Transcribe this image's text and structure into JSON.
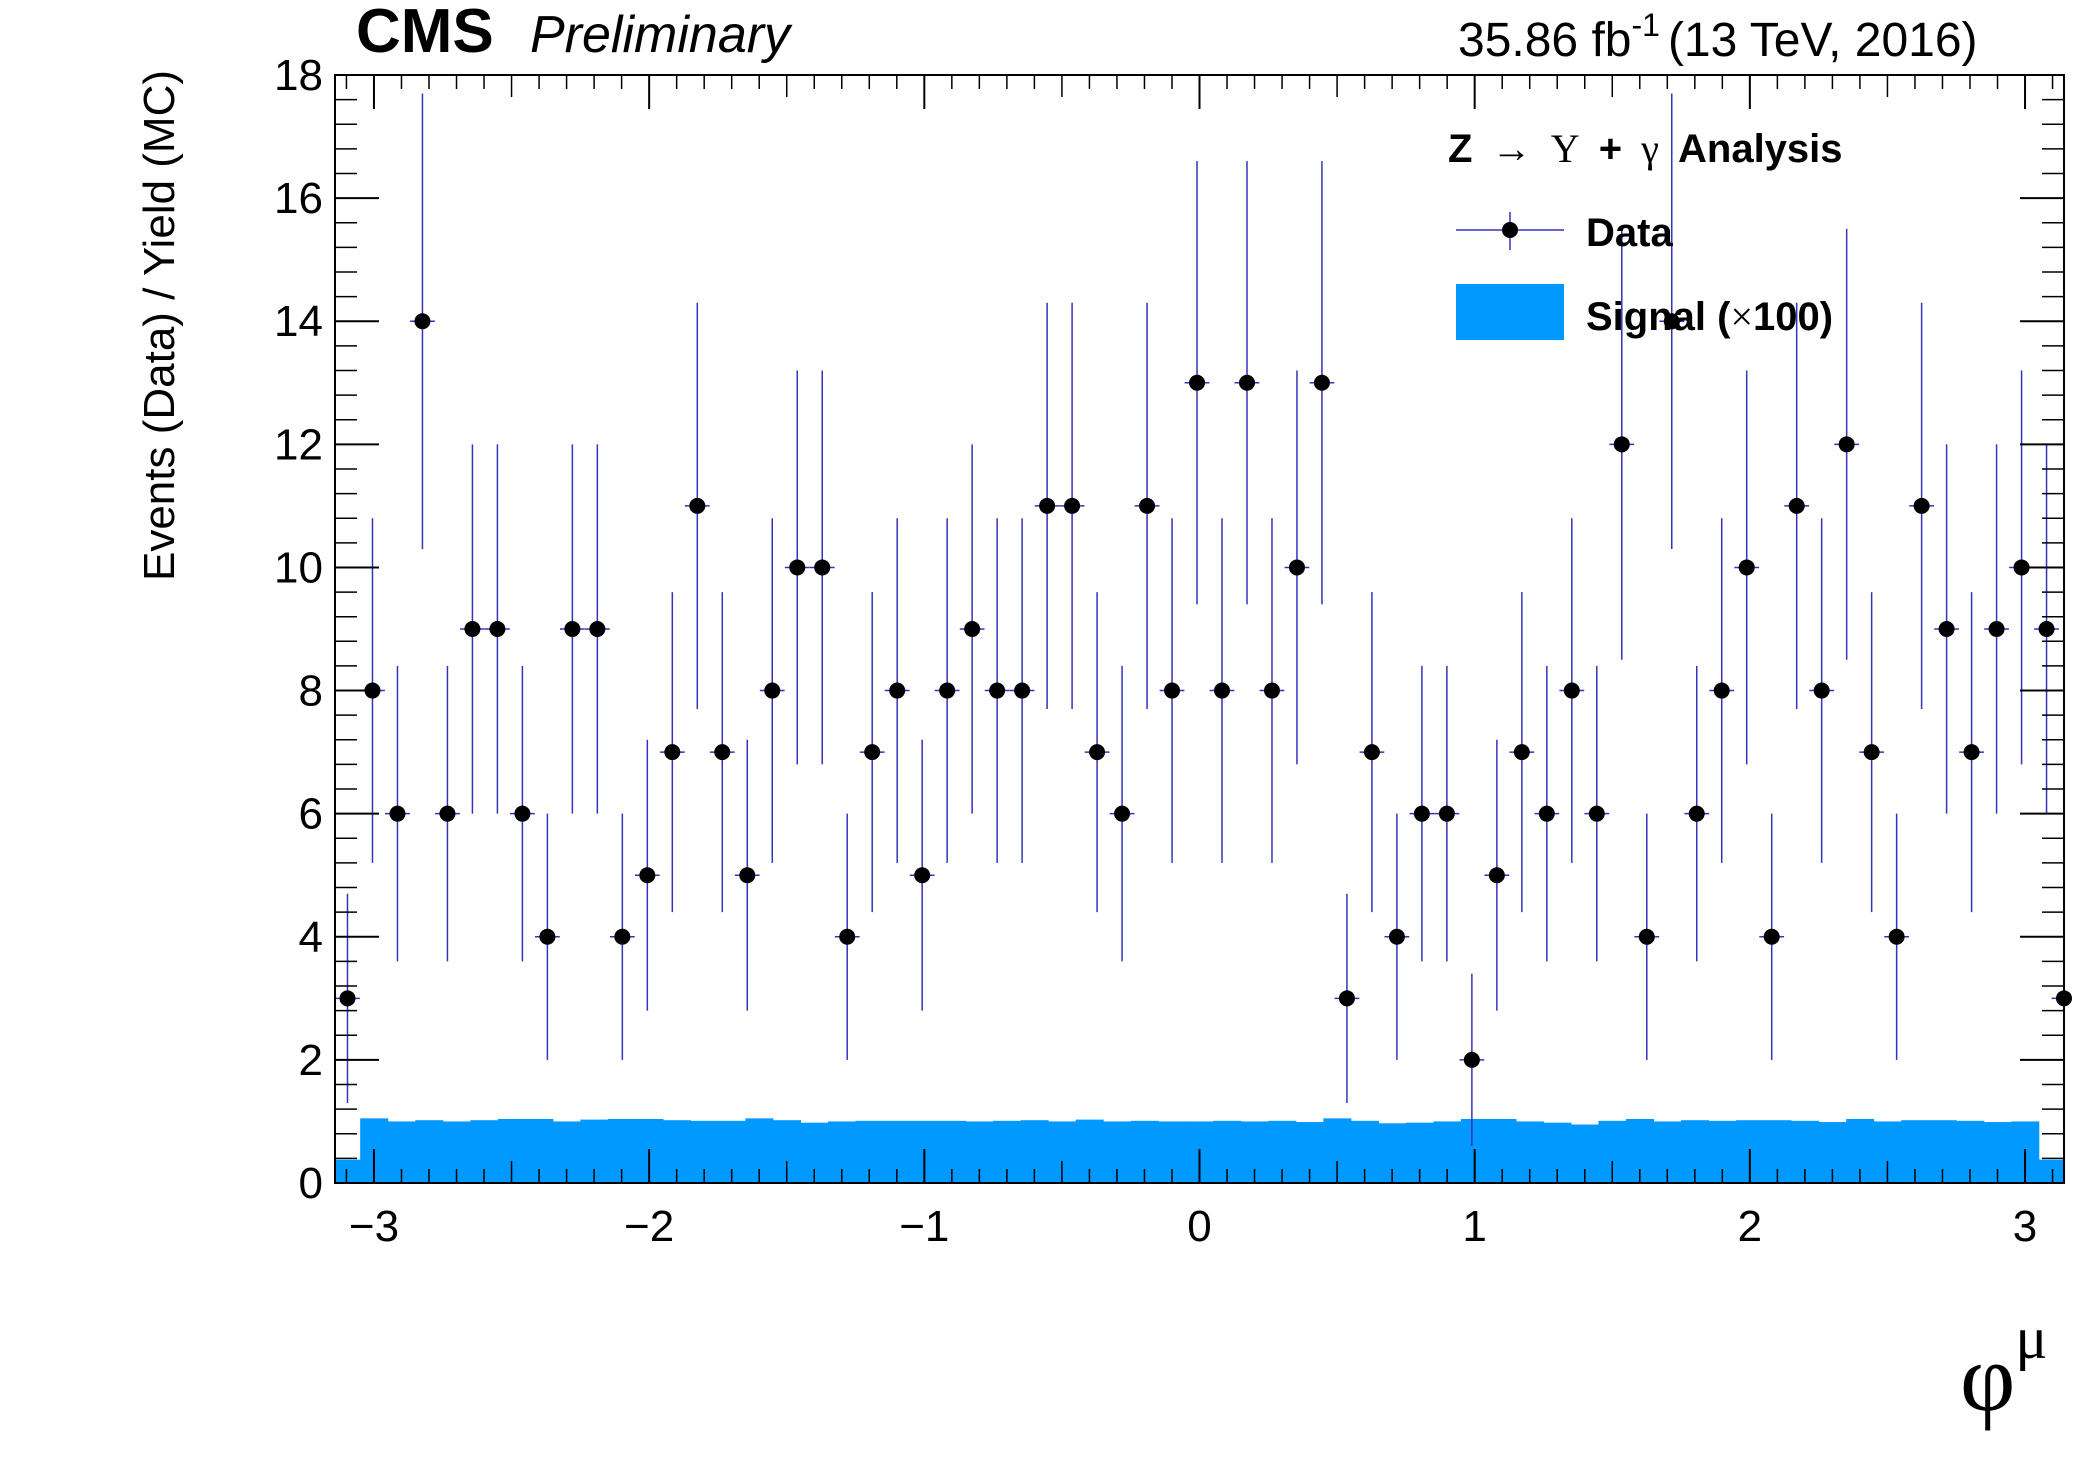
{
  "header": {
    "experiment": "CMS",
    "status": "Preliminary",
    "lumi_value": "35.86 fb",
    "lumi_exponent": "-1",
    "energy_label": "(13 TeV, 2016)"
  },
  "legend": {
    "header": {
      "z": "Z",
      "arrow": "→",
      "upsilon": "Υ",
      "plus": "+",
      "gamma": "γ",
      "suffix": "Analysis"
    },
    "data_label": "Data",
    "signal_label_prefix": "Signal (",
    "signal_times": "×",
    "signal_label_suffix": "100)"
  },
  "axes": {
    "ylabel": "Events (Data) / Yield (MC)",
    "xlabel_symbol": "φ",
    "xlabel_superscript": "μ",
    "xticks": [
      -3,
      -2,
      -1,
      0,
      1,
      2,
      3
    ],
    "xtick_labels": [
      "−3",
      "−2",
      "−1",
      "0",
      "1",
      "2",
      "3"
    ],
    "yticks": [
      0,
      2,
      4,
      6,
      8,
      10,
      12,
      14,
      16,
      18
    ],
    "ytick_labels": [
      "0",
      "2",
      "4",
      "6",
      "8",
      "10",
      "12",
      "14",
      "16",
      "18"
    ]
  },
  "colors": {
    "data_marker": "#000000",
    "error_bar": "#3333bb",
    "signal_fill": "#0099ff",
    "axis": "#000000"
  },
  "chart_data": {
    "type": "scatter",
    "xlim": [
      -3.1416,
      3.1416
    ],
    "ylim": [
      0,
      18
    ],
    "grid": false,
    "legend_position": "top-right",
    "series": [
      {
        "name": "Data",
        "style": "points-with-errors",
        "x": [
          -3.0962,
          -3.0054,
          -2.9146,
          -2.8238,
          -2.733,
          -2.6422,
          -2.5514,
          -2.4606,
          -2.3698,
          -2.279,
          -2.1882,
          -2.0974,
          -2.0066,
          -1.9158,
          -1.825,
          -1.7342,
          -1.6434,
          -1.5526,
          -1.4618,
          -1.371,
          -1.2802,
          -1.1894,
          -1.0986,
          -1.0078,
          -0.917,
          -0.8262,
          -0.7354,
          -0.6446,
          -0.5538,
          -0.463,
          -0.3722,
          -0.2814,
          -0.1906,
          -0.0998,
          -0.009,
          0.0818,
          0.1726,
          0.2634,
          0.3542,
          0.445,
          0.5358,
          0.6266,
          0.7174,
          0.8082,
          0.899,
          0.9898,
          1.0806,
          1.1714,
          1.2622,
          1.353,
          1.4438,
          1.5346,
          1.6254,
          1.7162,
          1.807,
          1.8978,
          1.9886,
          2.0794,
          2.1702,
          2.261,
          2.3518,
          2.4426,
          2.5334,
          2.6242,
          2.715,
          2.8058,
          2.8966,
          2.9874,
          3.0782,
          3.1416
        ],
        "y": [
          3,
          8,
          6,
          14,
          6,
          9,
          9,
          6,
          4,
          9,
          9,
          4,
          5,
          7,
          11,
          7,
          5,
          8,
          10,
          10,
          4,
          7,
          8,
          5,
          8,
          9,
          8,
          8,
          11,
          11,
          7,
          6,
          11,
          8,
          13,
          8,
          13,
          8,
          10,
          13,
          3,
          7,
          4,
          6,
          6,
          2,
          5,
          7,
          6,
          8,
          6,
          12,
          4,
          14,
          6,
          8,
          10,
          4,
          11,
          8,
          12,
          7,
          4,
          11,
          9,
          7,
          9,
          10,
          9,
          3
        ],
        "y_err_low": [
          1.7,
          2.8,
          2.4,
          3.7,
          2.4,
          3.0,
          3.0,
          2.4,
          2.0,
          3.0,
          3.0,
          2.0,
          2.2,
          2.6,
          3.3,
          2.6,
          2.2,
          2.8,
          3.2,
          3.2,
          2.0,
          2.6,
          2.8,
          2.2,
          2.8,
          3.0,
          2.8,
          2.8,
          3.3,
          3.3,
          2.6,
          2.4,
          3.3,
          2.8,
          3.6,
          2.8,
          3.6,
          2.8,
          3.2,
          3.6,
          1.7,
          2.6,
          2.0,
          2.4,
          2.4,
          1.4,
          2.2,
          2.6,
          2.4,
          2.8,
          2.4,
          3.5,
          2.0,
          3.7,
          2.4,
          2.8,
          3.2,
          2.0,
          3.3,
          2.8,
          3.5,
          2.6,
          2.0,
          3.3,
          3.0,
          2.6,
          3.0,
          3.2,
          3.0,
          1.7
        ],
        "y_err_high": [
          1.7,
          2.8,
          2.4,
          3.7,
          2.4,
          3.0,
          3.0,
          2.4,
          2.0,
          3.0,
          3.0,
          2.0,
          2.2,
          2.6,
          3.3,
          2.6,
          2.2,
          2.8,
          3.2,
          3.2,
          2.0,
          2.6,
          2.8,
          2.2,
          2.8,
          3.0,
          2.8,
          2.8,
          3.3,
          3.3,
          2.6,
          2.4,
          3.3,
          2.8,
          3.6,
          2.8,
          3.6,
          2.8,
          3.2,
          3.6,
          1.7,
          2.6,
          2.0,
          2.4,
          2.4,
          1.4,
          2.2,
          2.6,
          2.4,
          2.8,
          2.4,
          3.5,
          2.0,
          3.7,
          2.4,
          2.8,
          3.2,
          2.0,
          3.3,
          2.8,
          3.5,
          2.6,
          2.0,
          3.3,
          3.0,
          2.6,
          3.0,
          3.2,
          3.0,
          1.7
        ],
        "x_half_width": 0.045
      },
      {
        "name": "Signal (×100)",
        "style": "filled-histogram",
        "bin_low_edges": [
          -3.1416,
          -3.05,
          -2.95,
          -2.85,
          -2.75,
          -2.65,
          -2.55,
          -2.45,
          -2.35,
          -2.25,
          -2.15,
          -2.05,
          -1.95,
          -1.85,
          -1.75,
          -1.65,
          -1.55,
          -1.45,
          -1.35,
          -1.25,
          -1.15,
          -1.05,
          -0.95,
          -0.85,
          -0.75,
          -0.65,
          -0.55,
          -0.45,
          -0.35,
          -0.25,
          -0.15,
          -0.05,
          0.05,
          0.15,
          0.25,
          0.35,
          0.45,
          0.55,
          0.65,
          0.75,
          0.85,
          0.95,
          1.05,
          1.15,
          1.25,
          1.35,
          1.45,
          1.55,
          1.65,
          1.75,
          1.85,
          1.95,
          2.05,
          2.15,
          2.25,
          2.35,
          2.45,
          2.55,
          2.65,
          2.75,
          2.85,
          2.95,
          3.05
        ],
        "bin_high_edges": [
          -3.05,
          -2.95,
          -2.85,
          -2.75,
          -2.65,
          -2.55,
          -2.45,
          -2.35,
          -2.25,
          -2.15,
          -2.05,
          -1.95,
          -1.85,
          -1.75,
          -1.65,
          -1.55,
          -1.45,
          -1.35,
          -1.25,
          -1.15,
          -1.05,
          -0.95,
          -0.85,
          -0.75,
          -0.65,
          -0.55,
          -0.45,
          -0.35,
          -0.25,
          -0.15,
          -0.05,
          0.05,
          0.15,
          0.25,
          0.35,
          0.45,
          0.55,
          0.65,
          0.75,
          0.85,
          0.95,
          1.05,
          1.15,
          1.25,
          1.35,
          1.45,
          1.55,
          1.65,
          1.75,
          1.85,
          1.95,
          2.05,
          2.15,
          2.25,
          2.35,
          2.45,
          2.55,
          2.65,
          2.75,
          2.85,
          2.95,
          3.05,
          3.1416
        ],
        "values": [
          0.38,
          1.05,
          1.0,
          1.02,
          1.0,
          1.02,
          1.04,
          1.04,
          1.0,
          1.03,
          1.04,
          1.04,
          1.02,
          1.01,
          1.01,
          1.05,
          1.02,
          0.98,
          1.0,
          1.01,
          1.01,
          1.01,
          1.01,
          1.0,
          1.01,
          1.02,
          1.0,
          1.03,
          1.0,
          1.01,
          1.0,
          1.0,
          1.01,
          1.0,
          1.01,
          0.99,
          1.05,
          1.01,
          0.97,
          0.98,
          1.0,
          1.04,
          1.04,
          1.0,
          0.98,
          0.95,
          1.01,
          1.04,
          1.0,
          1.02,
          1.01,
          1.02,
          1.02,
          1.01,
          0.99,
          1.04,
          1.0,
          1.02,
          1.02,
          1.01,
          0.99,
          1.0,
          0.38
        ]
      }
    ]
  }
}
